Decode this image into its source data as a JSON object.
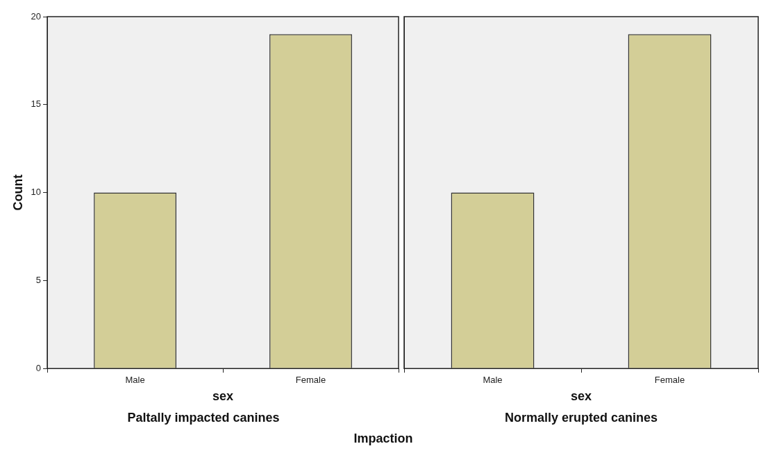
{
  "chart_data": [
    {
      "type": "bar",
      "title": "Paltally impacted canines",
      "xlabel": "sex",
      "ylabel": "Count",
      "categories": [
        "Male",
        "Female"
      ],
      "values": [
        10,
        19
      ],
      "color": "#d3ce97",
      "ylim": [
        0,
        20
      ],
      "yticks": [
        0,
        5,
        10,
        15,
        20
      ],
      "annotations": [
        "Impaction"
      ]
    },
    {
      "type": "bar",
      "title": "Normally erupted canines",
      "xlabel": "sex",
      "categories": [
        "Male",
        "Female"
      ],
      "values": [
        10,
        19
      ],
      "color": "#d3ce97",
      "ylim": [
        0,
        20
      ],
      "yticks": [
        0,
        5,
        10,
        15,
        20
      ],
      "tick_labels": "x"
    }
  ]
}
